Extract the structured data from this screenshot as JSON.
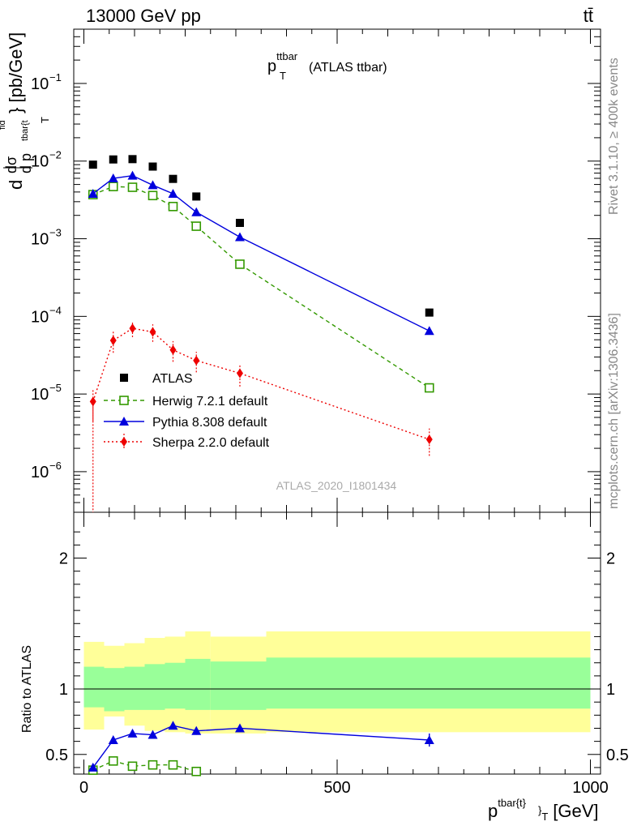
{
  "header": {
    "energy_label": "13000 GeV pp",
    "process_label": "tt̄"
  },
  "side_labels": {
    "rivet": "Rivet 3.1.10, ≥ 400k events",
    "mcplots": "mcplots.cern.ch [arXiv:1306.3436]"
  },
  "chart_data": {
    "type": "line",
    "title": "p_T^ttbar (ATLAS ttbar)",
    "title_main": "p",
    "title_sup": "ttbar",
    "title_sub": "T",
    "title_rest": "(ATLAS ttbar)",
    "analysis_id": "ATLAS_2020_I1801434",
    "xlabel": "p^{tbar{t}}_T [GeV]",
    "xlabel_main": "p",
    "xlabel_sup": "tbar{t}",
    "xlabel_sub": "}",
    "xlabel_sub2": "T",
    "xlabel_unit": "[GeV]",
    "ylabel_unit": "} [pb/GeV]",
    "ratio_ylabel": "Ratio to ATLAS",
    "xlim": [
      -20,
      1020
    ],
    "ylim_log": [
      3e-07,
      0.5
    ],
    "ratio_ylim": [
      0.35,
      2.35
    ],
    "x_ticks": [
      0,
      500,
      1000
    ],
    "x_tick_labels": [
      "0",
      "500",
      "1000"
    ],
    "y_major_exponents": [
      -6,
      -5,
      -4,
      -3,
      -2,
      -1
    ],
    "y_tick_labels": [
      "10",
      "10",
      "10",
      "10",
      "10",
      "10"
    ],
    "y_tick_exps": [
      "−6",
      "−5",
      "−4",
      "−3",
      "−2",
      "−1"
    ],
    "ratio_ticks": [
      0.5,
      1,
      2
    ],
    "ratio_tick_labels": [
      "0.5",
      "1",
      "2"
    ],
    "bins": [
      [
        0,
        40
      ],
      [
        40,
        80
      ],
      [
        80,
        120
      ],
      [
        120,
        160
      ],
      [
        160,
        200
      ],
      [
        200,
        250
      ],
      [
        250,
        360
      ],
      [
        360,
        1000
      ]
    ],
    "series": [
      {
        "name": "ATLAS",
        "label": "ATLAS",
        "style": "data",
        "color": "#000000",
        "x": [
          18,
          58,
          96,
          136,
          176,
          222,
          308,
          682
        ],
        "y": [
          0.009,
          0.0105,
          0.0106,
          0.0085,
          0.0059,
          0.0035,
          0.0016,
          0.000112
        ]
      },
      {
        "name": "Herwig 7.2.1 default",
        "label": "Herwig 7.2.1 default",
        "style": "dashed-open-square",
        "color": "#339900",
        "x": [
          18,
          58,
          96,
          136,
          176,
          222,
          308,
          682
        ],
        "y": [
          0.0037,
          0.0047,
          0.0046,
          0.0036,
          0.0026,
          0.00145,
          0.00047,
          1.2e-05
        ],
        "ratio": [
          0.38,
          0.45,
          0.41,
          0.42,
          0.42,
          0.37
        ]
      },
      {
        "name": "Pythia 8.308 default",
        "label": "Pythia 8.308 default",
        "style": "solid-triangle",
        "color": "#0000dd",
        "x": [
          18,
          58,
          96,
          136,
          176,
          222,
          308,
          682
        ],
        "y": [
          0.0038,
          0.006,
          0.0065,
          0.0049,
          0.0038,
          0.0022,
          0.00105,
          6.5e-05
        ],
        "ratio": [
          0.4,
          0.61,
          0.66,
          0.65,
          0.72,
          0.68,
          0.7,
          0.61
        ],
        "ratio_err": [
          0.02,
          0.02,
          0.02,
          0.02,
          0.02,
          0.03,
          0.02,
          0.05
        ]
      },
      {
        "name": "Sherpa 2.2.0 default",
        "label": "Sherpa 2.2.0 default",
        "style": "dotted-diamond",
        "color": "#ee0000",
        "x": [
          18,
          58,
          96,
          136,
          176,
          222,
          308,
          682
        ],
        "y": [
          8e-06,
          4.9e-05,
          7e-05,
          6.3e-05,
          3.7e-05,
          2.7e-05,
          1.85e-05,
          2.6e-06
        ],
        "y_err": [
          3.5e-06,
          1.5e-05,
          1.6e-05,
          1.6e-05,
          1.1e-05,
          8e-06,
          6e-06,
          1e-06
        ]
      }
    ],
    "ratio_bands": {
      "inner_color": "#99ff99",
      "outer_color": "#ffff99",
      "inner": [
        [
          0.86,
          1.17
        ],
        [
          0.83,
          1.16
        ],
        [
          0.84,
          1.17
        ],
        [
          0.84,
          1.19
        ],
        [
          0.85,
          1.2
        ],
        [
          0.84,
          1.23
        ],
        [
          0.84,
          1.21
        ],
        [
          0.85,
          1.24
        ]
      ],
      "outer": [
        [
          0.69,
          1.36
        ],
        [
          0.79,
          1.33
        ],
        [
          0.72,
          1.35
        ],
        [
          0.68,
          1.39
        ],
        [
          0.67,
          1.4
        ],
        [
          0.66,
          1.44
        ],
        [
          0.66,
          1.4
        ],
        [
          0.67,
          1.44
        ]
      ]
    }
  }
}
